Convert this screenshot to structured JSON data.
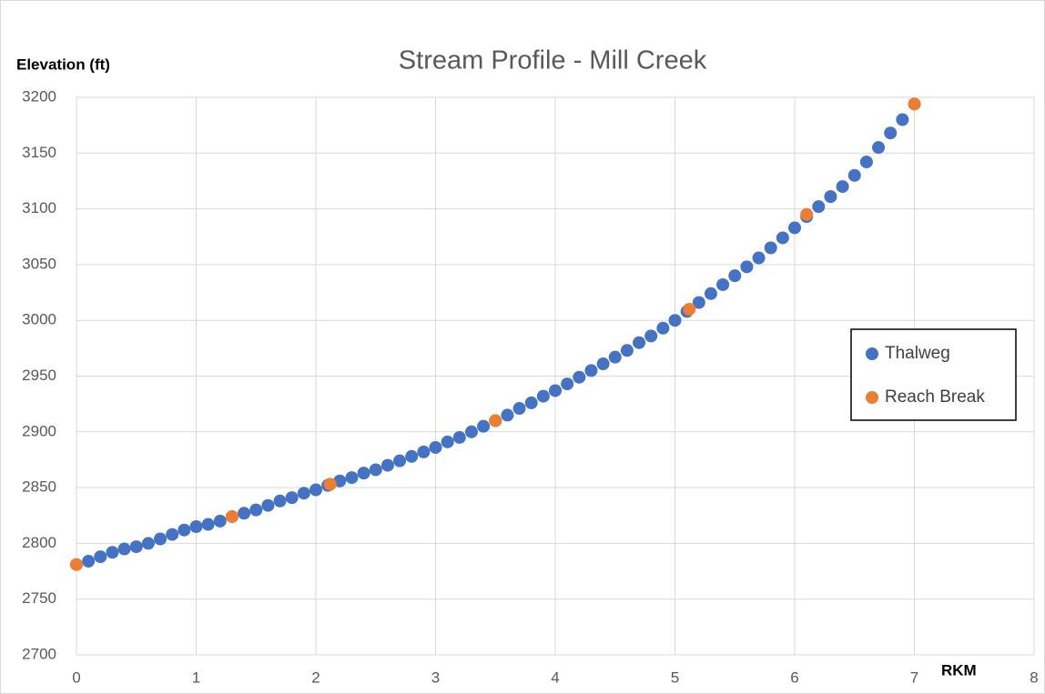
{
  "chart_data": {
    "type": "scatter",
    "title": "Stream Profile - Mill Creek",
    "y_label": "Elevation  (ft)",
    "x_label": "RKM",
    "xlim": [
      0,
      8
    ],
    "xticks": [
      0,
      1,
      2,
      3,
      4,
      5,
      6,
      7,
      8
    ],
    "ylim": [
      2700,
      3200
    ],
    "yticks": [
      2700,
      2750,
      2800,
      2850,
      2900,
      2950,
      3000,
      3050,
      3100,
      3150,
      3200
    ],
    "grid": true,
    "legend": "right",
    "series": [
      {
        "name": "Thalweg",
        "color": "#4472c4",
        "x": [
          0,
          0.1,
          0.2,
          0.3,
          0.4,
          0.5,
          0.6,
          0.7,
          0.8,
          0.9,
          1,
          1.1,
          1.2,
          1.3,
          1.4,
          1.5,
          1.6,
          1.7,
          1.8,
          1.9,
          2,
          2.1,
          2.2,
          2.3,
          2.4,
          2.5,
          2.6,
          2.7,
          2.8,
          2.9,
          3,
          3.1,
          3.2,
          3.3,
          3.4,
          3.5,
          3.6,
          3.7,
          3.8,
          3.9,
          4,
          4.1,
          4.2,
          4.3,
          4.4,
          4.5,
          4.6,
          4.7,
          4.8,
          4.9,
          5,
          5.1,
          5.2,
          5.3,
          5.4,
          5.5,
          5.6,
          5.7,
          5.8,
          5.9,
          6,
          6.1,
          6.2,
          6.3,
          6.4,
          6.5,
          6.6,
          6.7,
          6.8,
          6.9,
          7
        ],
        "values": [
          2781,
          2784,
          2788,
          2792,
          2795,
          2797,
          2800,
          2804,
          2808,
          2812,
          2815,
          2817,
          2820,
          2824,
          2827,
          2830,
          2834,
          2838,
          2841,
          2845,
          2848,
          2852,
          2856,
          2859,
          2863,
          2866,
          2870,
          2874,
          2878,
          2882,
          2886,
          2891,
          2895,
          2900,
          2905,
          2910,
          2915,
          2921,
          2926,
          2932,
          2937,
          2943,
          2949,
          2955,
          2961,
          2967,
          2973,
          2980,
          2986,
          2993,
          3000,
          3008,
          3016,
          3024,
          3032,
          3040,
          3048,
          3056,
          3065,
          3074,
          3083,
          3093,
          3102,
          3111,
          3120,
          3130,
          3142,
          3155,
          3168,
          3180,
          3194
        ]
      },
      {
        "name": "Reach Break",
        "color": "#ed7d31",
        "x": [
          0,
          1.3,
          2.12,
          3.5,
          5.12,
          6.1,
          7
        ],
        "values": [
          2781,
          2824,
          2853,
          2910,
          3010,
          3095,
          3194
        ]
      }
    ]
  }
}
